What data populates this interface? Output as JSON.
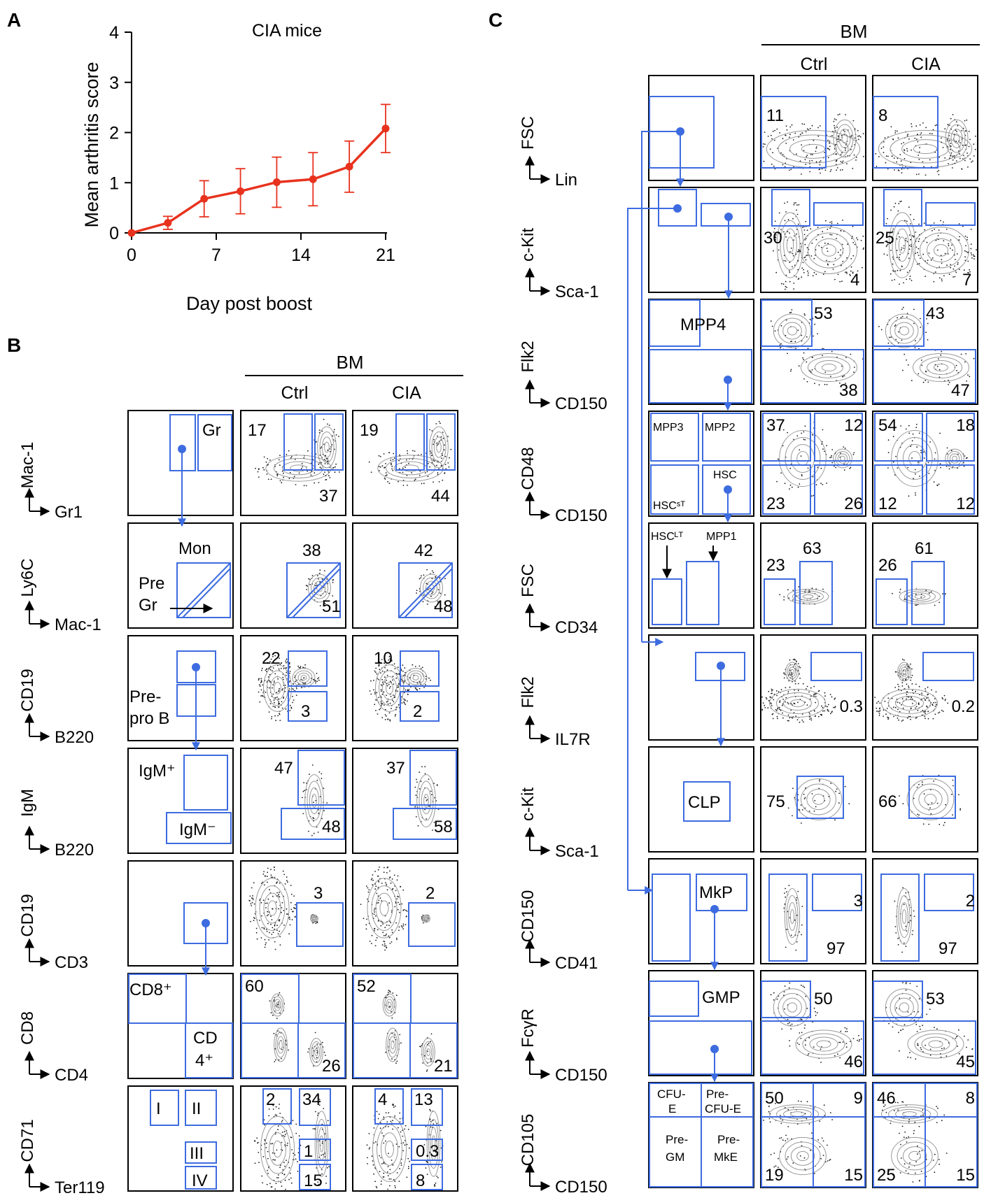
{
  "panel_a": {
    "label": "A",
    "title": "CIA mice",
    "xlabel": "Day post boost",
    "ylabel": "Mean arthritis score"
  },
  "chart_data": {
    "type": "line",
    "title": "CIA mice",
    "xlabel": "Day post boost",
    "ylabel": "Mean arthritis score",
    "xlim": [
      0,
      21
    ],
    "ylim": [
      0,
      4
    ],
    "xticks": [
      0,
      7,
      14,
      21
    ],
    "yticks": [
      0,
      1,
      2,
      3,
      4
    ],
    "x": [
      0,
      3,
      6,
      9,
      12,
      15,
      18,
      21
    ],
    "y": [
      0,
      0.2,
      0.68,
      0.83,
      1.01,
      1.07,
      1.32,
      2.08
    ],
    "err": [
      0,
      0.13,
      0.36,
      0.45,
      0.5,
      0.53,
      0.51,
      0.48
    ],
    "color": "#e8321e"
  },
  "panel_b": {
    "label": "B",
    "group_label": "BM",
    "col_headers": [
      "Ctrl",
      "CIA"
    ],
    "rows": [
      {
        "y_axis": "Mac-1",
        "x_axis": "Gr1",
        "schematic": [
          "Gr"
        ],
        "ctrl": [
          "17",
          "37"
        ],
        "cia": [
          "19",
          "44"
        ]
      },
      {
        "y_axis": "Ly6C",
        "x_axis": "Mac-1",
        "schematic": [
          "Mon",
          "Pre",
          "Gr"
        ],
        "ctrl": [
          "38",
          "51"
        ],
        "cia": [
          "42",
          "48"
        ]
      },
      {
        "y_axis": "CD19",
        "x_axis": "B220",
        "schematic": [
          "Pre-",
          "pro B"
        ],
        "ctrl": [
          "22",
          "3"
        ],
        "cia": [
          "10",
          "2"
        ]
      },
      {
        "y_axis": "IgM",
        "x_axis": "B220",
        "schematic": [
          "IgM⁺",
          "IgM⁻"
        ],
        "ctrl": [
          "47",
          "48"
        ],
        "cia": [
          "37",
          "58"
        ]
      },
      {
        "y_axis": "CD19",
        "x_axis": "CD3",
        "schematic": [],
        "ctrl": [
          "3"
        ],
        "cia": [
          "2"
        ]
      },
      {
        "y_axis": "CD8",
        "x_axis": "CD4",
        "schematic": [
          "CD8⁺",
          "CD",
          "4⁺"
        ],
        "ctrl": [
          "60",
          "26"
        ],
        "cia": [
          "52",
          "21"
        ]
      },
      {
        "y_axis": "CD71",
        "x_axis": "Ter119",
        "schematic": [
          "I",
          "II",
          "III",
          "IV"
        ],
        "ctrl": [
          "2",
          "34",
          "1",
          "15"
        ],
        "cia": [
          "4",
          "13",
          "0.3",
          "8"
        ]
      }
    ]
  },
  "panel_c": {
    "label": "C",
    "group_label": "BM",
    "col_headers": [
      "Ctrl",
      "CIA"
    ],
    "rows": [
      {
        "y_axis": "FSC",
        "x_axis": "Lin",
        "schematic": [],
        "ctrl": [
          "11"
        ],
        "cia": [
          "8"
        ]
      },
      {
        "y_axis": "c-Kit",
        "x_axis": "Sca-1",
        "schematic": [],
        "ctrl": [
          "30",
          "4"
        ],
        "cia": [
          "25",
          "7"
        ]
      },
      {
        "y_axis": "Flk2",
        "x_axis": "CD150",
        "schematic": [
          "MPP4"
        ],
        "ctrl": [
          "53",
          "38"
        ],
        "cia": [
          "43",
          "47"
        ]
      },
      {
        "y_axis": "CD48",
        "x_axis": "CD150",
        "schematic": [
          "MPP3",
          "MPP2",
          "HSCˢᵀ",
          "HSC"
        ],
        "ctrl": [
          "37",
          "12",
          "23",
          "26"
        ],
        "cia": [
          "54",
          "18",
          "12",
          "12"
        ]
      },
      {
        "y_axis": "FSC",
        "x_axis": "CD34",
        "schematic": [
          "HSCᴸᵀ",
          "MPP1"
        ],
        "ctrl": [
          "23",
          "63"
        ],
        "cia": [
          "26",
          "61"
        ]
      },
      {
        "y_axis": "Flk2",
        "x_axis": "IL7R",
        "schematic": [],
        "ctrl": [
          "0.3"
        ],
        "cia": [
          "0.2"
        ]
      },
      {
        "y_axis": "c-Kit",
        "x_axis": "Sca-1",
        "schematic": [
          "CLP"
        ],
        "ctrl": [
          "75"
        ],
        "cia": [
          "66"
        ]
      },
      {
        "y_axis": "CD150",
        "x_axis": "CD41",
        "schematic": [
          "MkP"
        ],
        "ctrl": [
          "3",
          "97"
        ],
        "cia": [
          "2",
          "97"
        ]
      },
      {
        "y_axis": "FcγR",
        "x_axis": "CD150",
        "schematic": [
          "GMP"
        ],
        "ctrl": [
          "50",
          "46"
        ],
        "cia": [
          "53",
          "45"
        ]
      },
      {
        "y_axis": "CD105",
        "x_axis": "CD150",
        "schematic": [
          "CFU-",
          "E",
          "Pre-",
          "CFU-E",
          "Pre-",
          "GM",
          "Pre-",
          "MkE"
        ],
        "ctrl": [
          "50",
          "9",
          "19",
          "15"
        ],
        "cia": [
          "46",
          "8",
          "25",
          "15"
        ]
      }
    ]
  },
  "colors": {
    "gate": "#3d6be0",
    "line": "#e8321e",
    "density": "#1a1a1a",
    "contour": "#9a9a9a"
  }
}
